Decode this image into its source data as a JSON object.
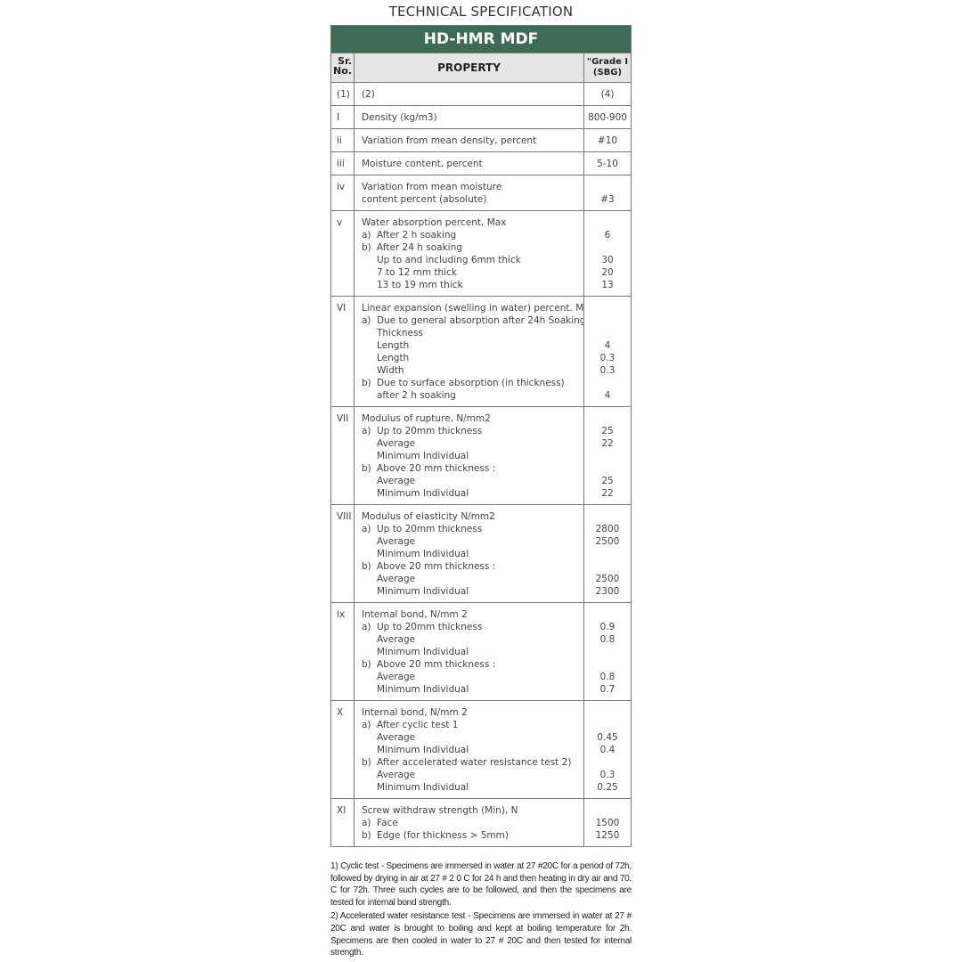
{
  "title": "TECHNICAL SPECIFICATION",
  "product": "HD-HMR MDF",
  "header": {
    "sr": "Sr.",
    "no": "No.",
    "property": "PROPERTY",
    "grade1": "\"Grade I",
    "grade2": "(SBG)"
  },
  "rows": [
    {
      "sr": "(1)",
      "lines": [
        {
          "t": "(2)",
          "v": "(4)"
        }
      ]
    },
    {
      "sr": "I",
      "lines": [
        {
          "t": "Density (kg/m3)",
          "v": "800-900"
        }
      ]
    },
    {
      "sr": "ii",
      "lines": [
        {
          "t": "Variation from mean density, percent",
          "v": "#10"
        }
      ]
    },
    {
      "sr": "iii",
      "lines": [
        {
          "t": "Moisture content, percent",
          "v": "5-10"
        }
      ]
    },
    {
      "sr": "iv",
      "lines": [
        {
          "t": "Variation from mean moisture",
          "v": ""
        },
        {
          "t": "content percent (absolute)",
          "v": "#3"
        }
      ]
    },
    {
      "sr": "v",
      "lines": [
        {
          "t": "Water absorption percent, Max",
          "v": ""
        },
        {
          "m": "a)",
          "t": "After 2 h soaking",
          "v": "6"
        },
        {
          "m": "b)",
          "t": "After 24 h soaking",
          "v": ""
        },
        {
          "i": 1,
          "t": "Up to and including 6mm thick",
          "v": "30"
        },
        {
          "i": 1,
          "t": "7 to 12 mm thick",
          "v": "20"
        },
        {
          "i": 1,
          "t": "13 to 19 mm thick",
          "v": "13"
        }
      ]
    },
    {
      "sr": "VI",
      "lines": [
        {
          "t": "Linear expansion (swelling in water) percent. Max",
          "v": ""
        },
        {
          "m": "a)",
          "t": "Due to general absorption after 24h Soaking",
          "v": ""
        },
        {
          "i": 1,
          "t": "Thickness",
          "v": ""
        },
        {
          "i": 1,
          "t": "Length",
          "v": "4"
        },
        {
          "i": 1,
          "t": "Length",
          "v": "0.3"
        },
        {
          "i": 1,
          "t": "Width",
          "v": "0.3"
        },
        {
          "m": "b)",
          "t": "Due to surface absorption (in thickness)",
          "v": ""
        },
        {
          "i": 1,
          "t": "after 2 h soaking",
          "v": "4"
        }
      ]
    },
    {
      "sr": "VII",
      "lines": [
        {
          "t": "Modulus of rupture, N/mm2",
          "v": ""
        },
        {
          "m": "a)",
          "t": "Up to 20mm thickness",
          "v": "25"
        },
        {
          "i": 1,
          "t": "Average",
          "v": "22"
        },
        {
          "i": 1,
          "t": "Minimum Individual",
          "v": ""
        },
        {
          "m": "b)",
          "t": "Above 20 mm thickness :",
          "v": ""
        },
        {
          "i": 1,
          "t": "Average",
          "v": "25"
        },
        {
          "i": 1,
          "t": "Minimum Individual",
          "v": "22"
        }
      ]
    },
    {
      "sr": "VIII",
      "lines": [
        {
          "t": "Modulus of elasticity N/mm2",
          "v": ""
        },
        {
          "m": "a)",
          "t": "Up to 20mm thickness",
          "v": "2800"
        },
        {
          "i": 1,
          "t": "Average",
          "v": "2500"
        },
        {
          "i": 1,
          "t": "Minimum Individual",
          "v": ""
        },
        {
          "m": "b)",
          "t": "Above 20 mm thickness :",
          "v": ""
        },
        {
          "i": 1,
          "t": "Average",
          "v": "2500"
        },
        {
          "i": 1,
          "t": "Minimum Individual",
          "v": "2300"
        }
      ]
    },
    {
      "sr": "ix",
      "lines": [
        {
          "t": "Internal bond, N/mm 2",
          "v": ""
        },
        {
          "m": "a)",
          "t": "Up to 20mm thickness",
          "v": "0.9"
        },
        {
          "i": 1,
          "t": "Average",
          "v": "0.8"
        },
        {
          "i": 1,
          "t": "Minimum Individual",
          "v": ""
        },
        {
          "m": "b)",
          "t": "Above 20 mm thickness :",
          "v": ""
        },
        {
          "i": 1,
          "t": "Average",
          "v": "0.8"
        },
        {
          "i": 1,
          "t": "Minimum Individual",
          "v": "0.7"
        }
      ]
    },
    {
      "sr": "X",
      "lines": [
        {
          "t": "Internal bond, N/mm 2",
          "v": ""
        },
        {
          "m": "a)",
          "t": "After cyclic test 1",
          "v": ""
        },
        {
          "i": 1,
          "t": "Average",
          "v": "0.45"
        },
        {
          "i": 1,
          "t": "Minimum Individual",
          "v": "0.4"
        },
        {
          "m": "b)",
          "t": "After accelerated water resistance test 2)",
          "v": ""
        },
        {
          "i": 1,
          "t": "Average",
          "v": "0.3"
        },
        {
          "i": 1,
          "t": "Minimum Individual",
          "v": "0.25"
        }
      ]
    },
    {
      "sr": "XI",
      "lines": [
        {
          "t": "Screw withdraw strength (Min), N",
          "v": ""
        },
        {
          "m": "a)",
          "t": "Face",
          "v": "1500"
        },
        {
          "m": "b)",
          "t": "Edge (for thickness > 5mm)",
          "v": "1250"
        }
      ]
    }
  ],
  "notes": [
    "1) Cyclic test -  Specimens are immersed in water at 27 #20C for a period of 72h, followed by drying in air at 27 # 2 0 C for 24 h and then heating in dry air and 70. C for 72h. Three such cycles are to be followed, and then the specimens are tested for internal bond strength.",
    "2) Accelerated water resistance test - Specimens are immersed in water at 27 # 20C and water is brought to boiling and kept at boiling temperature for 2h. Specimens are then cooled in water to 27 # 20C and then tested for internal strength."
  ],
  "colors": {
    "band": "#3e6b55",
    "header_bg": "#e6e6e6"
  }
}
